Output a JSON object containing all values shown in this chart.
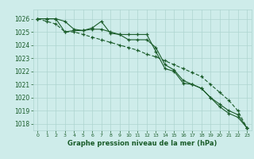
{
  "x": [
    0,
    1,
    2,
    3,
    4,
    5,
    6,
    7,
    8,
    9,
    10,
    11,
    12,
    13,
    14,
    15,
    16,
    17,
    18,
    19,
    20,
    21,
    22,
    23
  ],
  "line1": [
    1026.0,
    1026.0,
    1026.0,
    1025.8,
    1025.2,
    1025.1,
    1025.3,
    1025.8,
    1024.9,
    1024.8,
    1024.8,
    1024.8,
    1024.8,
    1023.5,
    1022.2,
    1022.0,
    1021.1,
    1021.0,
    1020.7,
    1020.0,
    1019.3,
    1018.8,
    1018.5,
    1017.7
  ],
  "line2": [
    1026.0,
    1026.0,
    1026.0,
    1025.0,
    1025.1,
    1025.1,
    1025.2,
    1025.2,
    1025.0,
    1024.8,
    1024.4,
    1024.4,
    1024.4,
    1023.8,
    1022.5,
    1022.1,
    1021.3,
    1021.0,
    1020.7,
    1020.0,
    1019.5,
    1019.0,
    1018.7,
    1017.7
  ],
  "line3": [
    1026.0,
    1025.8,
    1025.6,
    1025.0,
    1025.0,
    1024.8,
    1024.6,
    1024.4,
    1024.2,
    1024.0,
    1023.8,
    1023.6,
    1023.3,
    1023.1,
    1022.8,
    1022.5,
    1022.2,
    1021.9,
    1021.6,
    1021.0,
    1020.4,
    1019.8,
    1019.0,
    1017.7
  ],
  "ylim_min": 1017.5,
  "ylim_max": 1026.7,
  "yticks": [
    1018,
    1019,
    1020,
    1021,
    1022,
    1023,
    1024,
    1025,
    1026
  ],
  "xlabel": "Graphe pression niveau de la mer (hPa)",
  "bg_color": "#ceecea",
  "grid_color": "#aed4d0",
  "line_color": "#1a5c2a",
  "marker_color": "#1a5c2a",
  "xlabel_color": "#1a5c2a",
  "tick_color": "#1a5c2a"
}
